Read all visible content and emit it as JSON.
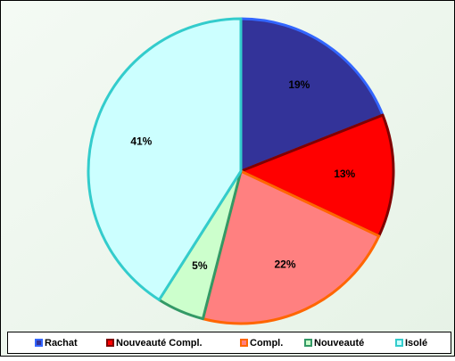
{
  "chart_data": {
    "type": "pie",
    "categories": [
      "Rachat",
      "Nouveauté Compl.",
      "Compl.",
      "Nouveauté",
      "Isolé"
    ],
    "values": [
      19,
      13,
      22,
      5,
      41
    ],
    "value_labels": [
      "19%",
      "13%",
      "22%",
      "5%",
      "41%"
    ],
    "colors": [
      "#333399",
      "#ff0000",
      "#ff8080",
      "#ccffcc",
      "#ccffff"
    ],
    "edge_colors": [
      "#3366ff",
      "#800000",
      "#ff6600",
      "#339966",
      "#33cccc"
    ],
    "legend": "bottom"
  }
}
